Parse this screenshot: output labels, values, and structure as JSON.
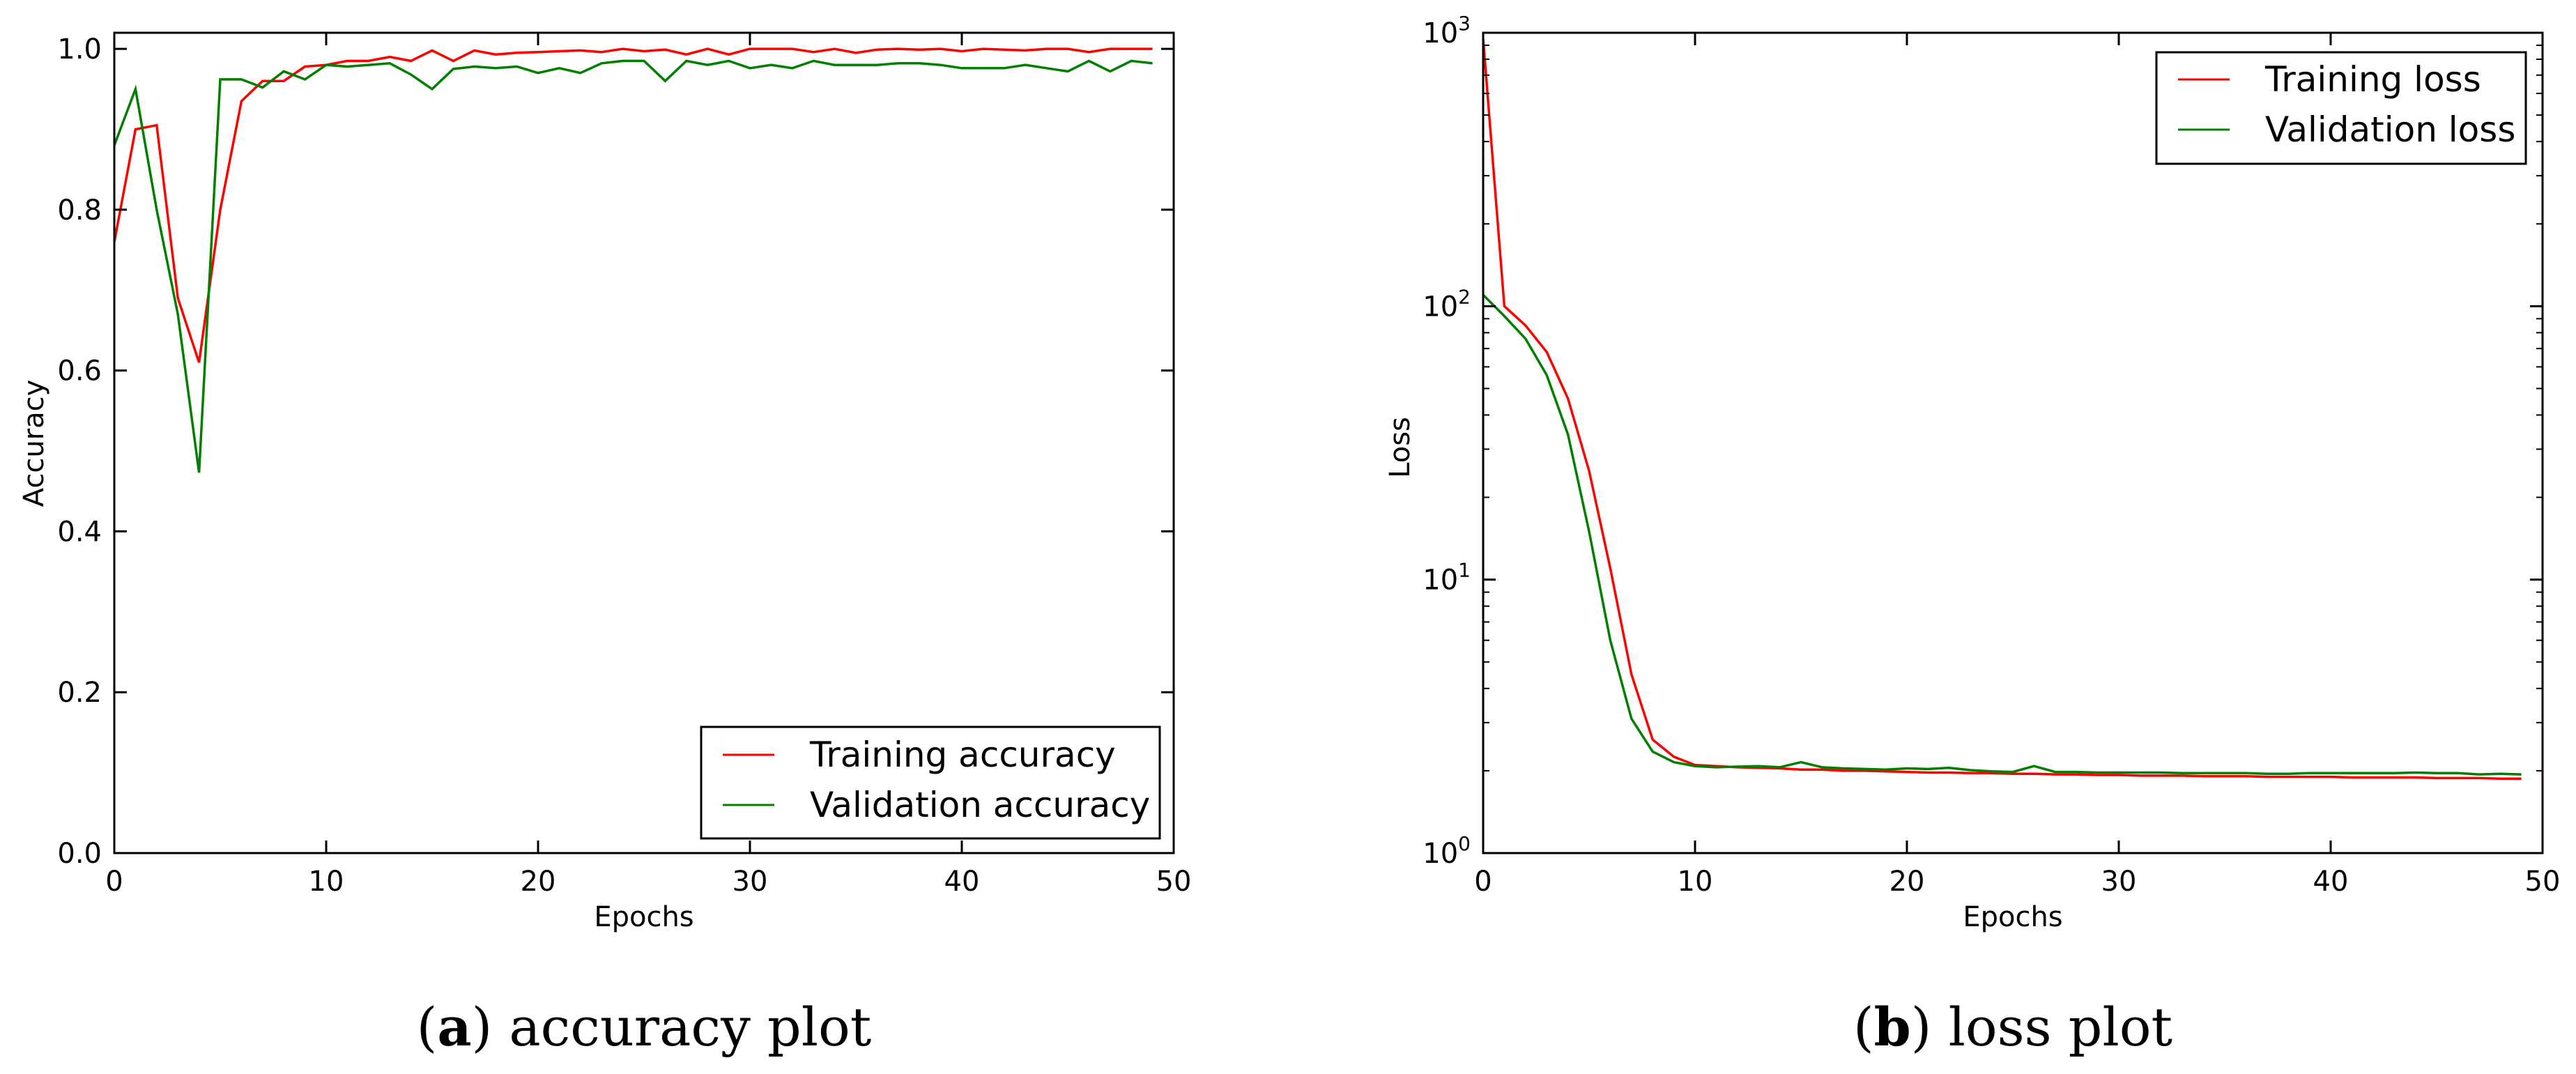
{
  "colors": {
    "training": "#ff0000",
    "validation": "#007f00"
  },
  "chart_data": [
    {
      "type": "line",
      "caption": {
        "letter": "a",
        "text": "accuracy plot"
      },
      "xlabel": "Epochs",
      "ylabel": "Accuracy",
      "xlim": [
        0,
        50
      ],
      "ylim": [
        0.0,
        1.02
      ],
      "yscale": "linear",
      "xticks": [
        0,
        10,
        20,
        30,
        40,
        50
      ],
      "xtick_labels": [
        "0",
        "10",
        "20",
        "30",
        "40",
        "50"
      ],
      "yticks": [
        0.0,
        0.2,
        0.4,
        0.6,
        0.8,
        1.0
      ],
      "ytick_labels": [
        "0.0",
        "0.2",
        "0.4",
        "0.6",
        "0.8",
        "1.0"
      ],
      "legend_position": "lower-right",
      "grid": false,
      "series": [
        {
          "name": "Training accuracy",
          "color_key": "training",
          "x": [
            0,
            1,
            2,
            3,
            4,
            5,
            6,
            7,
            8,
            9,
            10,
            11,
            12,
            13,
            14,
            15,
            16,
            17,
            18,
            19,
            20,
            21,
            22,
            23,
            24,
            25,
            26,
            27,
            28,
            29,
            30,
            31,
            32,
            33,
            34,
            35,
            36,
            37,
            38,
            39,
            40,
            41,
            42,
            43,
            44,
            45,
            46,
            47,
            48,
            49
          ],
          "values": [
            0.76,
            0.9,
            0.905,
            0.69,
            0.61,
            0.8,
            0.935,
            0.96,
            0.96,
            0.978,
            0.98,
            0.985,
            0.985,
            0.99,
            0.985,
            0.998,
            0.985,
            0.998,
            0.993,
            0.995,
            0.996,
            0.997,
            0.998,
            0.996,
            1.0,
            0.997,
            0.999,
            0.993,
            1.0,
            0.993,
            1.0,
            1.0,
            1.0,
            0.996,
            1.0,
            0.995,
            0.999,
            1.0,
            0.999,
            1.0,
            0.997,
            1.0,
            0.999,
            0.998,
            1.0,
            1.0,
            0.996,
            1.0,
            1.0,
            1.0
          ]
        },
        {
          "name": "Validation accuracy",
          "color_key": "validation",
          "x": [
            0,
            1,
            2,
            3,
            4,
            5,
            6,
            7,
            8,
            9,
            10,
            11,
            12,
            13,
            14,
            15,
            16,
            17,
            18,
            19,
            20,
            21,
            22,
            23,
            24,
            25,
            26,
            27,
            28,
            29,
            30,
            31,
            32,
            33,
            34,
            35,
            36,
            37,
            38,
            39,
            40,
            41,
            42,
            43,
            44,
            45,
            46,
            47,
            48,
            49
          ],
          "values": [
            0.88,
            0.95,
            0.8,
            0.67,
            0.473,
            0.962,
            0.962,
            0.952,
            0.972,
            0.962,
            0.98,
            0.978,
            0.98,
            0.982,
            0.968,
            0.95,
            0.975,
            0.978,
            0.976,
            0.978,
            0.97,
            0.976,
            0.97,
            0.982,
            0.985,
            0.985,
            0.96,
            0.985,
            0.98,
            0.985,
            0.976,
            0.98,
            0.976,
            0.985,
            0.98,
            0.98,
            0.98,
            0.982,
            0.982,
            0.98,
            0.976,
            0.976,
            0.976,
            0.98,
            0.976,
            0.972,
            0.985,
            0.972,
            0.985,
            0.982
          ]
        }
      ]
    },
    {
      "type": "line",
      "caption": {
        "letter": "b",
        "text": "loss plot"
      },
      "xlabel": "Epochs",
      "ylabel": "Loss",
      "xlim": [
        0,
        50
      ],
      "ylim": [
        1,
        1000
      ],
      "yscale": "log",
      "xticks": [
        0,
        10,
        20,
        30,
        40,
        50
      ],
      "xtick_labels": [
        "0",
        "10",
        "20",
        "30",
        "40",
        "50"
      ],
      "yticks": [
        1,
        10,
        100,
        1000
      ],
      "ytick_labels": [
        {
          "base": "10",
          "exp": "0"
        },
        {
          "base": "10",
          "exp": "1"
        },
        {
          "base": "10",
          "exp": "2"
        },
        {
          "base": "10",
          "exp": "3"
        }
      ],
      "legend_position": "top-right",
      "grid": false,
      "series": [
        {
          "name": "Training loss",
          "color_key": "training",
          "x": [
            0,
            1,
            2,
            3,
            4,
            5,
            6,
            7,
            8,
            9,
            10,
            11,
            12,
            13,
            14,
            15,
            16,
            17,
            18,
            19,
            20,
            21,
            22,
            23,
            24,
            25,
            26,
            27,
            28,
            29,
            30,
            31,
            32,
            33,
            34,
            35,
            36,
            37,
            38,
            39,
            40,
            41,
            42,
            43,
            44,
            45,
            46,
            47,
            48,
            49
          ],
          "values": [
            950,
            100,
            85,
            68,
            46,
            25,
            11,
            4.5,
            2.6,
            2.25,
            2.1,
            2.08,
            2.06,
            2.05,
            2.04,
            2.02,
            2.02,
            2.0,
            2.0,
            1.99,
            1.98,
            1.97,
            1.97,
            1.96,
            1.96,
            1.95,
            1.95,
            1.94,
            1.94,
            1.93,
            1.93,
            1.92,
            1.92,
            1.92,
            1.91,
            1.91,
            1.91,
            1.9,
            1.9,
            1.9,
            1.9,
            1.89,
            1.89,
            1.89,
            1.89,
            1.88,
            1.88,
            1.88,
            1.87,
            1.87
          ]
        },
        {
          "name": "Validation loss",
          "color_key": "validation",
          "x": [
            0,
            1,
            2,
            3,
            4,
            5,
            6,
            7,
            8,
            9,
            10,
            11,
            12,
            13,
            14,
            15,
            16,
            17,
            18,
            19,
            20,
            21,
            22,
            23,
            24,
            25,
            26,
            27,
            28,
            29,
            30,
            31,
            32,
            33,
            34,
            35,
            36,
            37,
            38,
            39,
            40,
            41,
            42,
            43,
            44,
            45,
            46,
            47,
            48,
            49
          ],
          "values": [
            110,
            92,
            76,
            56,
            34,
            15,
            6.0,
            3.1,
            2.35,
            2.15,
            2.08,
            2.06,
            2.07,
            2.08,
            2.06,
            2.15,
            2.06,
            2.04,
            2.03,
            2.02,
            2.04,
            2.03,
            2.05,
            2.01,
            1.99,
            1.98,
            2.08,
            1.98,
            1.98,
            1.97,
            1.97,
            1.97,
            1.97,
            1.96,
            1.96,
            1.96,
            1.96,
            1.95,
            1.95,
            1.96,
            1.96,
            1.96,
            1.96,
            1.96,
            1.97,
            1.96,
            1.96,
            1.94,
            1.95,
            1.94
          ]
        }
      ]
    }
  ]
}
